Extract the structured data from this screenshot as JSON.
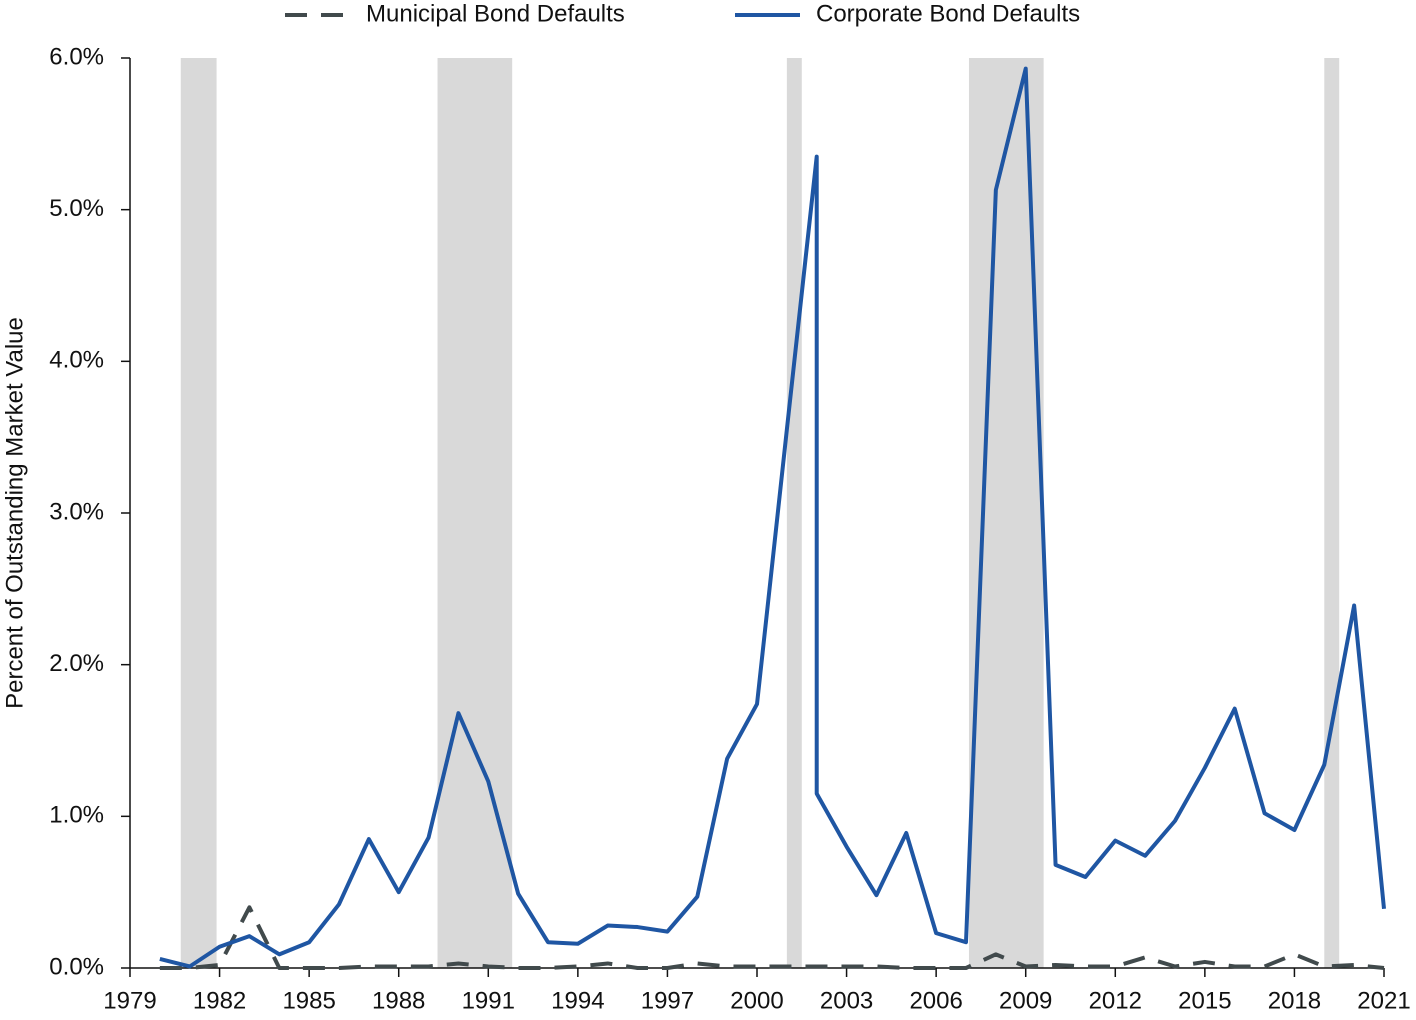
{
  "chart_data": {
    "type": "line",
    "ylabel": "Percent of Outstanding Market Value",
    "xlim": [
      1979,
      2021
    ],
    "xticks": [
      1979,
      1982,
      1985,
      1988,
      1991,
      1994,
      1997,
      2000,
      2003,
      2006,
      2009,
      2012,
      2015,
      2018,
      2021
    ],
    "ylim": [
      0,
      6
    ],
    "yticks": [
      {
        "value": 0,
        "label": "0.0%"
      },
      {
        "value": 1,
        "label": "1.0%"
      },
      {
        "value": 2,
        "label": "2.0%"
      },
      {
        "value": 3,
        "label": "3.0%"
      },
      {
        "value": 4,
        "label": "4.0%"
      },
      {
        "value": 5,
        "label": "5.0%"
      },
      {
        "value": 6,
        "label": "6.0%"
      }
    ],
    "shaded_regions": [
      [
        1980.7,
        1981.9
      ],
      [
        1989.3,
        1991.8
      ],
      [
        2001.0,
        2001.5
      ],
      [
        2007.1,
        2009.6
      ],
      [
        2019.0,
        2019.5
      ]
    ],
    "shade_color": "#d9d9d9",
    "legend": "top",
    "series": [
      {
        "name": "Municipal Bond Defaults",
        "color": "#414a4c",
        "dash": true,
        "x": [
          1980,
          1981,
          1982,
          1983,
          1984,
          1985,
          1986,
          1987,
          1988,
          1989,
          1990,
          1991,
          1992,
          1993,
          1994,
          1995,
          1996,
          1997,
          1998,
          1999,
          2000,
          2001,
          2002,
          2003,
          2004,
          2005,
          2006,
          2007,
          2008,
          2009,
          2010,
          2011,
          2012,
          2013,
          2014,
          2015,
          2016,
          2017,
          2018,
          2019,
          2020,
          2021
        ],
        "values": [
          0,
          0,
          0.02,
          0.4,
          0,
          0,
          0,
          0.01,
          0.01,
          0.01,
          0.03,
          0.01,
          0,
          0,
          0.01,
          0.03,
          0,
          0,
          0.03,
          0.01,
          0.01,
          0.01,
          0.01,
          0.01,
          0.01,
          0,
          0,
          0,
          0.09,
          0.01,
          0.02,
          0.01,
          0.01,
          0.07,
          0.01,
          0.04,
          0.01,
          0.01,
          0.09,
          0.01,
          0.02,
          0
        ]
      },
      {
        "name": "Corporate Bond Defaults",
        "color": "#1f56a3",
        "dash": false,
        "x": [
          1980,
          1981,
          1982,
          1983,
          1984,
          1985,
          1986,
          1987,
          1988,
          1989,
          1990,
          1991,
          1992,
          1993,
          1994,
          1995,
          1996,
          1997,
          1998,
          1999,
          2000,
          2001,
          2002,
          2002,
          2003,
          2004,
          2005,
          2006,
          2007,
          2008,
          2009,
          2010,
          2011,
          2012,
          2013,
          2014,
          2015,
          2016,
          2017,
          2018,
          2019,
          2020,
          2021
        ],
        "values": [
          0.06,
          0.01,
          0.14,
          0.21,
          0.09,
          0.17,
          0.42,
          0.85,
          0.5,
          0.86,
          1.68,
          1.23,
          0.49,
          0.17,
          0.16,
          0.28,
          0.27,
          0.24,
          0.47,
          1.38,
          1.74,
          3.55,
          5.35,
          1.15,
          0.8,
          0.48,
          0.89,
          0.23,
          0.17,
          5.13,
          5.93,
          0.68,
          0.6,
          0.84,
          0.74,
          0.97,
          1.32,
          1.71,
          1.02,
          0.91,
          1.34,
          2.39,
          0.39
        ]
      }
    ]
  }
}
